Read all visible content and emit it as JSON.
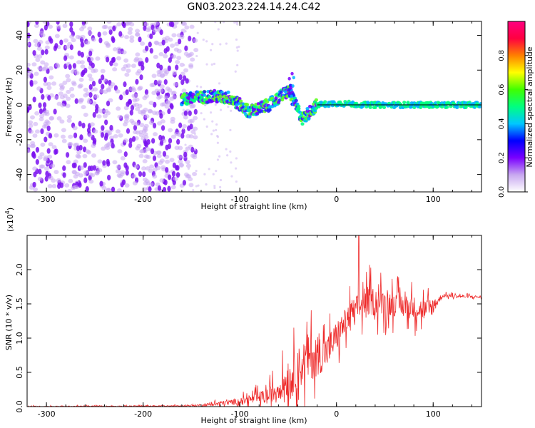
{
  "title": "GN03.2023.224.14.24.C42",
  "chart_data": [
    {
      "type": "heatmap",
      "xlabel": "Height of straight line (km)",
      "ylabel": "Frequency (Hz)",
      "xlim": [
        -320,
        150
      ],
      "ylim": [
        -50,
        48
      ],
      "x_ticks": [
        -300,
        -200,
        -100,
        0,
        100
      ],
      "y_ticks": [
        -40,
        -20,
        0,
        20,
        40
      ],
      "colorbar": {
        "label": "Normalized spectral amplitude",
        "range": [
          0,
          1
        ],
        "ticks": [
          "0.0",
          "0.2",
          "0.4",
          "0.6",
          "0.8"
        ],
        "colors": [
          "#ffffff",
          "#c8a8f0",
          "#7a00ff",
          "#0000ff",
          "#00c8ff",
          "#00ff80",
          "#40ff00",
          "#ffff00",
          "#ff8000",
          "#ff0040",
          "#ff0080"
        ]
      },
      "noise_region_km": [
        -320,
        -160
      ],
      "signal_trace": [
        {
          "x": -160,
          "y": 3
        },
        {
          "x": -130,
          "y": 5
        },
        {
          "x": -110,
          "y": 4
        },
        {
          "x": -90,
          "y": -4
        },
        {
          "x": -70,
          "y": 0
        },
        {
          "x": -50,
          "y": 8
        },
        {
          "x": -35,
          "y": -8
        },
        {
          "x": -20,
          "y": 0
        },
        {
          "x": 0,
          "y": 1
        },
        {
          "x": 30,
          "y": 0
        },
        {
          "x": 100,
          "y": 0
        },
        {
          "x": 150,
          "y": 0
        }
      ]
    },
    {
      "type": "line",
      "xlabel": "Height of straight line (km)",
      "ylabel": "SNR (10 * v/v)",
      "y_multiplier": "(x10",
      "y_multiplier_exp": "4",
      "y_multiplier_close": ")",
      "xlim": [
        -320,
        150
      ],
      "ylim": [
        0,
        2.5
      ],
      "x_ticks": [
        -300,
        -200,
        -100,
        0,
        100
      ],
      "y_ticks": [
        "0.0",
        "0.5",
        "1.0",
        "1.5",
        "2.0"
      ],
      "color": "#ee2a2a",
      "series_envelope": [
        {
          "x": -320,
          "base": 0.0,
          "amp": 0.02
        },
        {
          "x": -160,
          "base": 0.01,
          "amp": 0.02
        },
        {
          "x": -140,
          "base": 0.02,
          "amp": 0.04
        },
        {
          "x": -110,
          "base": 0.06,
          "amp": 0.1
        },
        {
          "x": -90,
          "base": 0.1,
          "amp": 0.15
        },
        {
          "x": -70,
          "base": 0.15,
          "amp": 0.3
        },
        {
          "x": -50,
          "base": 0.4,
          "amp": 0.6
        },
        {
          "x": -30,
          "base": 0.7,
          "amp": 0.9
        },
        {
          "x": -10,
          "base": 0.8,
          "amp": 0.6
        },
        {
          "x": 10,
          "base": 1.25,
          "amp": 0.5
        },
        {
          "x": 30,
          "base": 1.55,
          "amp": 0.55
        },
        {
          "x": 60,
          "base": 1.5,
          "amp": 0.45
        },
        {
          "x": 95,
          "base": 1.4,
          "amp": 0.4
        },
        {
          "x": 110,
          "base": 1.62,
          "amp": 0.06
        },
        {
          "x": 150,
          "base": 1.6,
          "amp": 0.05
        }
      ],
      "peak": {
        "x": 23,
        "y": 2.5
      }
    }
  ]
}
